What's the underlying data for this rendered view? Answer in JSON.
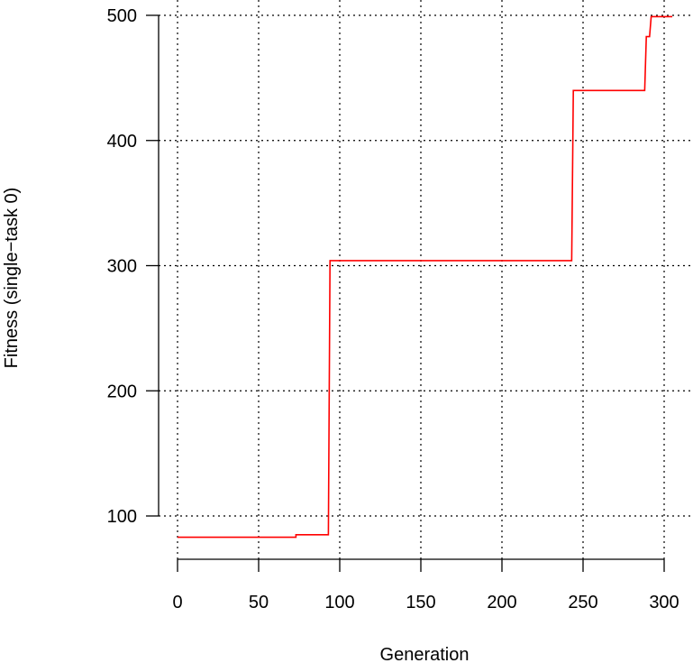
{
  "chart_data": {
    "type": "line",
    "title": "",
    "xlabel": "Generation",
    "ylabel": "Fitness (single−task 0)",
    "xlim": [
      0,
      300
    ],
    "ylim": [
      80,
      500
    ],
    "x_ticks": [
      0,
      50,
      100,
      150,
      200,
      250,
      300
    ],
    "y_ticks": [
      100,
      200,
      300,
      400,
      500
    ],
    "x_tick_labels": [
      "0",
      "50",
      "100",
      "150",
      "200",
      "250",
      "300"
    ],
    "y_tick_labels": [
      "100",
      "200",
      "300",
      "400",
      "500"
    ],
    "grid": true,
    "line_style": "step",
    "series": [
      {
        "color": "#ff0000",
        "x": [
          0,
          73,
          73,
          93,
          94,
          243,
          244,
          288,
          289,
          291,
          292,
          305
        ],
        "y": [
          83,
          83,
          85,
          85,
          304,
          304,
          440,
          440,
          483,
          483,
          499,
          499
        ]
      }
    ]
  }
}
